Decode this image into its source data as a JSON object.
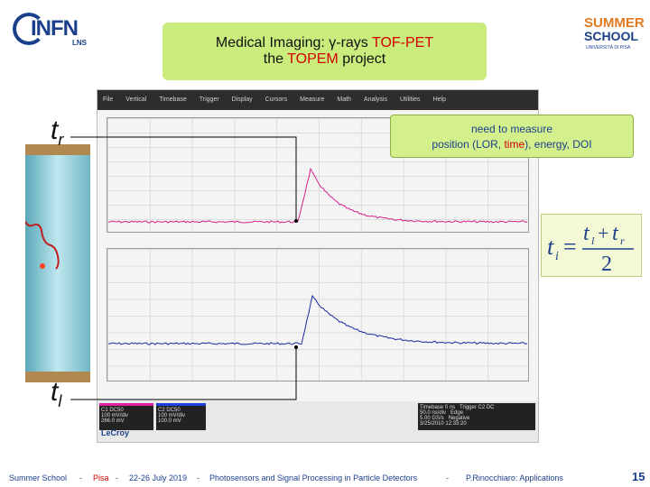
{
  "title": {
    "line1_prefix": "Medical Imaging: ",
    "gamma": "γ",
    "line1_mid": "-rays ",
    "line1_red": "TOF-PET",
    "line2_prefix": "the ",
    "line2_red": "TOPEM",
    "line2_suffix": " project"
  },
  "logos": {
    "infn_word": "INFN",
    "infn_sub": "LNS",
    "summer": "SUMMER",
    "school": "SCHOOL",
    "university": "UNIVERSITÀ DI PISA"
  },
  "callout": {
    "line1": "need to measure",
    "line2_prefix": "position (LOR, ",
    "line2_red": "time",
    "line2_suffix": "), energy, DOI"
  },
  "labels": {
    "t_r": "t",
    "t_r_sub": "r",
    "t_l": "t",
    "t_l_sub": "l"
  },
  "formula": {
    "lhs": "t",
    "lhs_sub": "i",
    "num_a": "t",
    "num_a_sub": "l",
    "plus": "+",
    "num_b": "t",
    "num_b_sub": "r",
    "den": "2"
  },
  "scope": {
    "menu": [
      "File",
      "Vertical",
      "Timebase",
      "Trigger",
      "Display",
      "Cursors",
      "Measure",
      "Math",
      "Analysis",
      "Utilities",
      "Help"
    ],
    "ch1": [
      "C1",
      "DC50",
      "100 mV/div",
      "266.0 mV"
    ],
    "ch2": [
      "C2",
      "DC50",
      "100 mV/div",
      "100.0 mV"
    ],
    "timebase": [
      "Timebase",
      "0 ns",
      "Trigger",
      "C2 DC",
      "50.0 ns/div",
      "5.00 GS/s",
      "Edge",
      "Negative"
    ],
    "brand": "LeCroy",
    "timestamp": "3/25/2010 12:33:20"
  },
  "colors": {
    "trace1": "#d4208c",
    "trace2": "#1a2aa0",
    "accent": "#1b3f8b",
    "green_box": "#c9ec7c",
    "red": "#d40000"
  },
  "footer": {
    "school": "Summer School",
    "sep1": "-",
    "place": "Pisa",
    "sep2": "-",
    "dates": "22-26 July 2019",
    "sep3": "-",
    "topic": "Photosensors and Signal Processing in Particle Detectors",
    "sep4": "-",
    "author": "P.Rinocchiaro: Applications",
    "page": "15"
  }
}
